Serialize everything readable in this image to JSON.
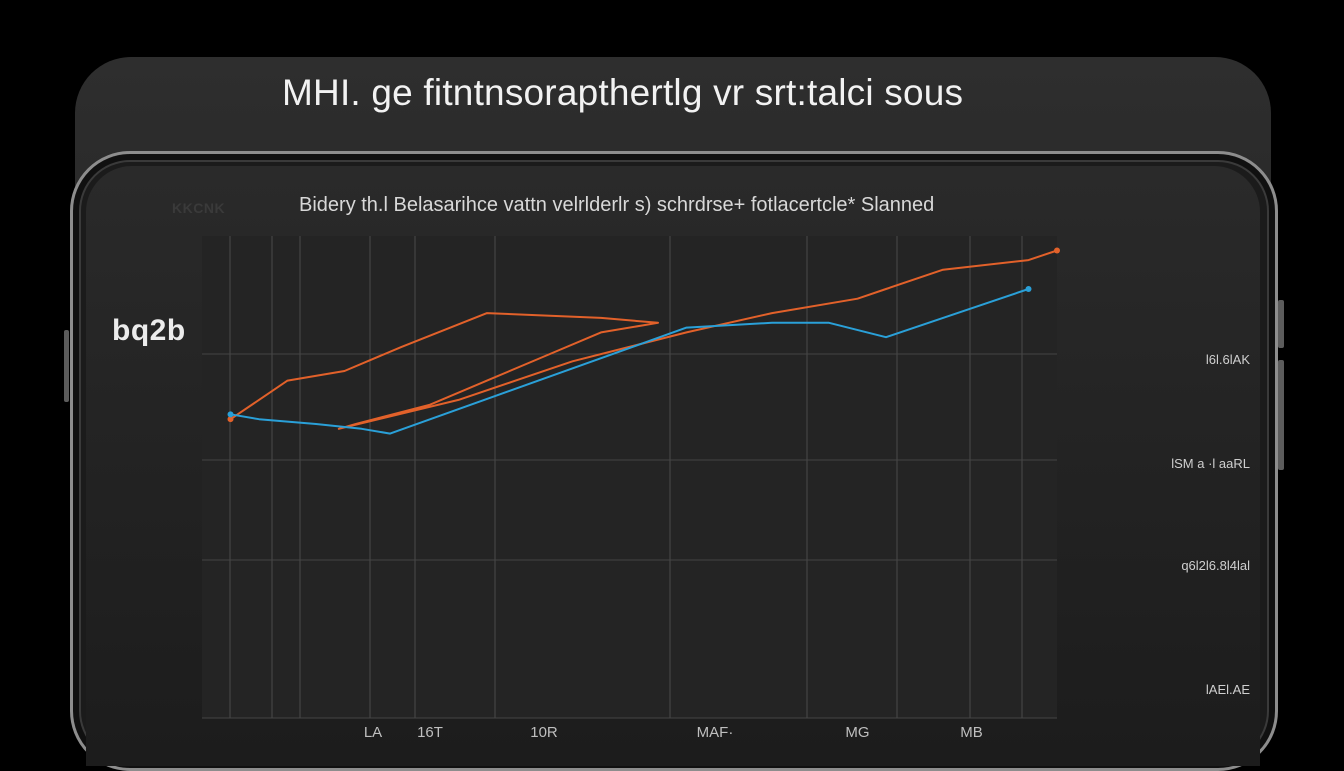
{
  "headline": "MHI. ge fitntnsorapthertlg vr srt:talci sous",
  "corner_label": "KKCNK",
  "subtitle": "Bidery th.l Belasarihce vattn velrlderlr s) schrdrse+ fotlacertcle* Slanned",
  "side_label": "bq2b",
  "chart_data": {
    "type": "line",
    "title": "",
    "x": [
      1,
      2,
      3,
      4,
      5,
      6,
      7,
      8,
      9,
      10,
      11,
      12
    ],
    "x_tick_labels": [
      {
        "x": 3,
        "label": "LA"
      },
      {
        "x": 4,
        "label": "16T"
      },
      {
        "x": 6,
        "label": "10R"
      },
      {
        "x": 9,
        "label": "MAF·"
      },
      {
        "x": 11.5,
        "label": "MG"
      },
      {
        "x": 13.5,
        "label": "MB"
      }
    ],
    "y_tick_labels": [
      "l6l.6lAK",
      "lSM a ·l aaRL",
      "q6l2l6.8l4lal",
      "lAEl.AE"
    ],
    "ylim": [
      0,
      100
    ],
    "xlim": [
      0,
      15
    ],
    "grid": true,
    "series": [
      {
        "color": "#e2612a",
        "points": [
          {
            "x": 0.5,
            "y": 62
          },
          {
            "x": 1.5,
            "y": 70
          },
          {
            "x": 2.5,
            "y": 72
          },
          {
            "x": 3.5,
            "y": 77
          },
          {
            "x": 5,
            "y": 84
          },
          {
            "x": 7,
            "y": 83
          },
          {
            "x": 8,
            "y": 82
          },
          {
            "x": 7,
            "y": 80
          },
          {
            "x": 6,
            "y": 75
          },
          {
            "x": 5,
            "y": 70
          },
          {
            "x": 4,
            "y": 65
          },
          {
            "x": 2.7,
            "y": 61
          },
          {
            "x": 2.4,
            "y": 60
          },
          {
            "x": 4.5,
            "y": 66
          },
          {
            "x": 6.5,
            "y": 74
          },
          {
            "x": 8.5,
            "y": 80
          },
          {
            "x": 10,
            "y": 84
          },
          {
            "x": 11.5,
            "y": 87
          },
          {
            "x": 12,
            "y": 89
          },
          {
            "x": 13,
            "y": 93
          },
          {
            "x": 14.5,
            "y": 95
          },
          {
            "x": 15,
            "y": 97
          }
        ]
      },
      {
        "color": "#2aa0d8",
        "points": [
          {
            "x": 0.5,
            "y": 63
          },
          {
            "x": 1,
            "y": 62
          },
          {
            "x": 2,
            "y": 61
          },
          {
            "x": 2.8,
            "y": 60
          },
          {
            "x": 3.3,
            "y": 59
          },
          {
            "x": 8.5,
            "y": 81
          },
          {
            "x": 10,
            "y": 82
          },
          {
            "x": 11,
            "y": 82
          },
          {
            "x": 12,
            "y": 79
          },
          {
            "x": 13,
            "y": 83
          },
          {
            "x": 14.5,
            "y": 89
          }
        ]
      }
    ]
  }
}
